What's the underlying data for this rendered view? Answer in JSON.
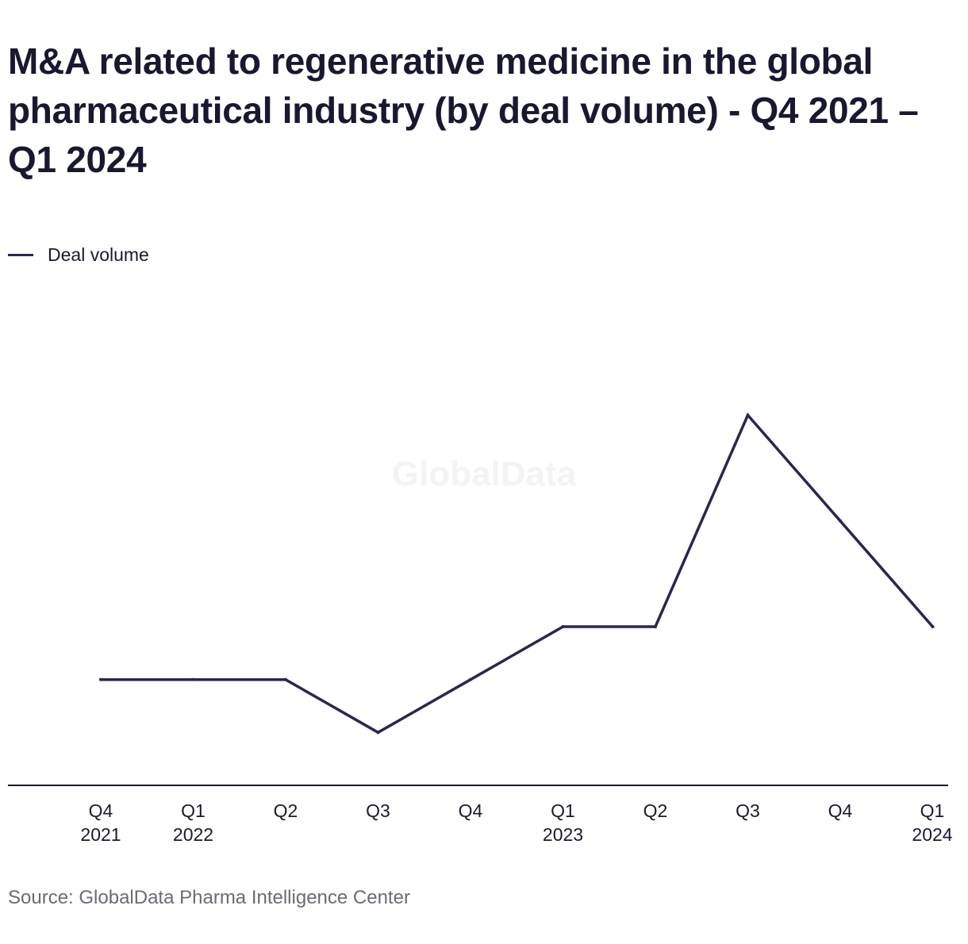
{
  "chart_data": {
    "type": "line",
    "title": "M&A related to regenerative medicine in the global pharmaceutical industry (by deal volume) - Q4 2021 – Q1 2024",
    "x": [
      [
        "Q4",
        "2021"
      ],
      [
        "Q1",
        "2022"
      ],
      [
        "Q2"
      ],
      [
        "Q3"
      ],
      [
        "Q4"
      ],
      [
        "Q1",
        "2023"
      ],
      [
        "Q2"
      ],
      [
        "Q3"
      ],
      [
        "Q4"
      ],
      [
        "Q1",
        "2024"
      ]
    ],
    "series": [
      {
        "name": "Deal volume",
        "values": [
          3,
          3,
          3,
          2,
          3,
          4,
          4,
          8,
          6,
          4
        ],
        "color": "#2e2350"
      }
    ],
    "ylim": [
      1,
      10
    ],
    "grid": false,
    "legend": "top-left",
    "watermark": "GlobalData",
    "source": "Source: GlobalData Pharma Intelligence Center"
  }
}
